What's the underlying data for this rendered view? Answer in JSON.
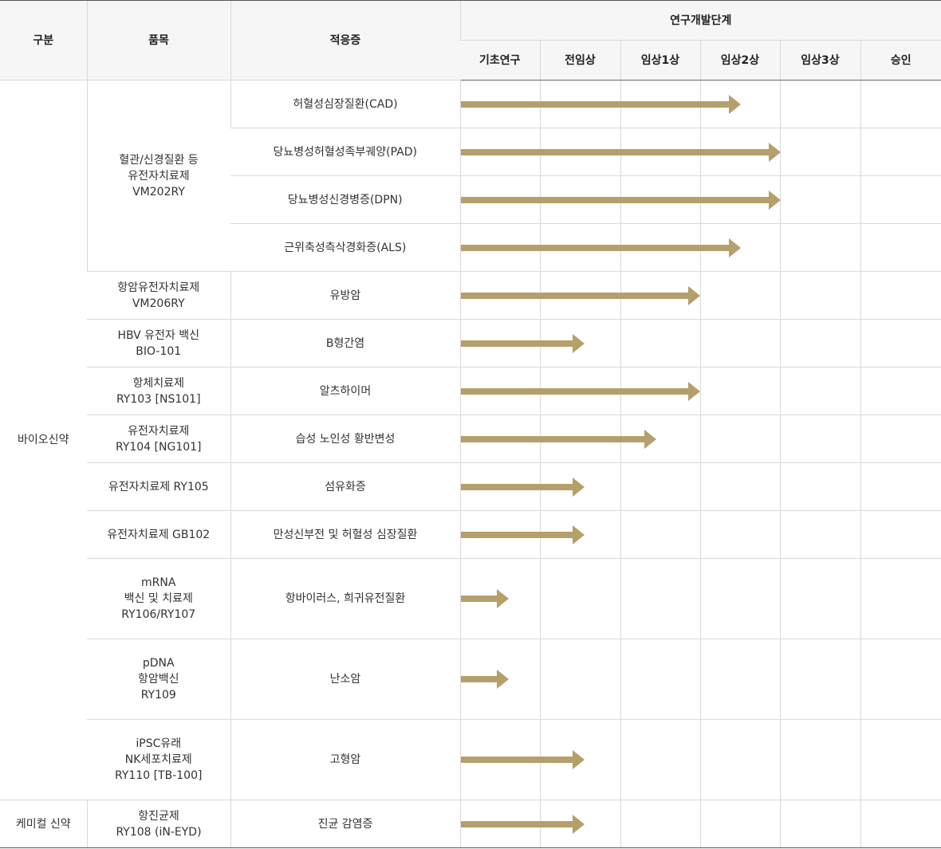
{
  "header": {
    "category": "구분",
    "product": "품목",
    "indication": "적응증",
    "stage_group": "연구개발단계",
    "stages": [
      "기초연구",
      "전임상",
      "임상1상",
      "임상2상",
      "임상3상",
      "승인"
    ]
  },
  "arrow_color": "#b5a06b",
  "categories": {
    "bio": "바이오신약",
    "chem": "케미컬 신약"
  },
  "products": [
    [
      "혈관/신경질환 등",
      "유전자치료제",
      "VM202RY"
    ],
    [
      "항암유전자치료제",
      "VM206RY"
    ],
    [
      "HBV 유전자 백신",
      "BIO-101"
    ],
    [
      "항체치료제",
      "RY103 [NS101]"
    ],
    [
      "유전자치료제",
      "RY104 [NG101]"
    ],
    [
      "유전자치료제 RY105"
    ],
    [
      "유전자치료제 GB102"
    ],
    [
      "mRNA",
      "백신 및 치료제",
      "RY106/RY107"
    ],
    [
      "pDNA",
      "항암백신",
      "RY109"
    ],
    [
      "iPSC유래",
      "NK세포치료제",
      "RY110 [TB-100]"
    ],
    [
      "항진균제",
      "RY108 (iN-EYD)"
    ]
  ],
  "rows": [
    {
      "indication": "허혈성심장질환(CAD)",
      "progress": 3.5
    },
    {
      "indication": "당뇨병성허혈성족부궤양(PAD)",
      "progress": 4.0
    },
    {
      "indication": "당뇨병성신경병증(DPN)",
      "progress": 4.0
    },
    {
      "indication": "근위축성측삭경화증(ALS)",
      "progress": 3.5
    },
    {
      "indication": "유방암",
      "progress": 3.0
    },
    {
      "indication": "B형간염",
      "progress": 1.55
    },
    {
      "indication": "알츠하이머",
      "progress": 3.0
    },
    {
      "indication": "습성 노인성 황반변성",
      "progress": 2.45
    },
    {
      "indication": "섬유화증",
      "progress": 1.55
    },
    {
      "indication": "만성신부전 및 허혈성 심장질환",
      "progress": 1.55
    },
    {
      "indication": "항바이러스, 희귀유전질환",
      "progress": 0.6
    },
    {
      "indication": "난소암",
      "progress": 0.6
    },
    {
      "indication": "고형암",
      "progress": 1.55
    },
    {
      "indication": "진균 감염증",
      "progress": 1.55
    }
  ]
}
